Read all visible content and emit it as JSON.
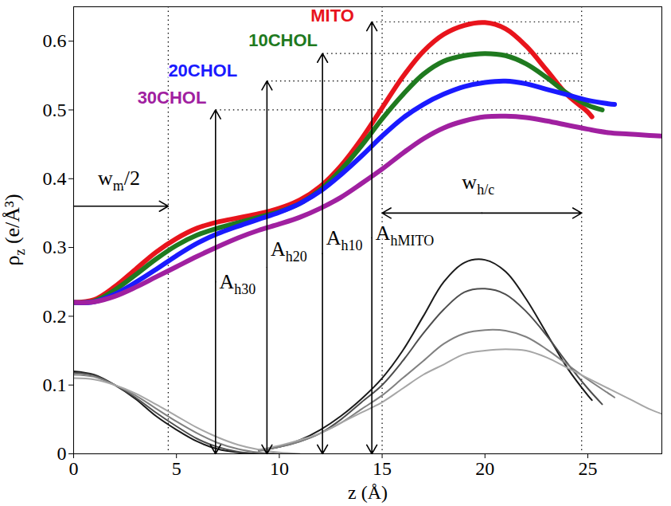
{
  "chart_data": {
    "type": "line",
    "xlabel": "z (Å)",
    "ylabel": {
      "text": "ρ",
      "sub": "z",
      "suffix": " (e/Å³)"
    },
    "xlim": [
      0,
      28.6
    ],
    "ylim": [
      0,
      0.65
    ],
    "xticks": [
      0,
      5,
      10,
      15,
      20,
      25
    ],
    "yticks": [
      0,
      0.1,
      0.2,
      0.3,
      0.4,
      0.5,
      0.6
    ],
    "series": [
      {
        "name": "MITO",
        "color": "#e8141c",
        "label_position": {
          "x": 12.6,
          "y": 0.628
        },
        "x": [
          0,
          1,
          2,
          3,
          4,
          5,
          6,
          7,
          8,
          9,
          10,
          11,
          12,
          13,
          14,
          15,
          16,
          17,
          18,
          19,
          20,
          21,
          22,
          23,
          24,
          25,
          25.2
        ],
        "values": [
          0.22,
          0.224,
          0.243,
          0.268,
          0.293,
          0.313,
          0.328,
          0.337,
          0.343,
          0.349,
          0.357,
          0.369,
          0.389,
          0.419,
          0.458,
          0.503,
          0.548,
          0.585,
          0.61,
          0.623,
          0.627,
          0.618,
          0.593,
          0.558,
          0.522,
          0.497,
          0.49
        ]
      },
      {
        "name": "10CHOL",
        "color": "#1f7a1f",
        "label_position": {
          "x": 10.2,
          "y": 0.592
        },
        "x": [
          0,
          1,
          2,
          3,
          4,
          5,
          6,
          7,
          8,
          9,
          10,
          11,
          12,
          13,
          14,
          15,
          16,
          17,
          18,
          19,
          20,
          21,
          22,
          23,
          24,
          25,
          25.7
        ],
        "values": [
          0.22,
          0.222,
          0.238,
          0.26,
          0.283,
          0.303,
          0.318,
          0.328,
          0.336,
          0.344,
          0.352,
          0.364,
          0.384,
          0.413,
          0.448,
          0.487,
          0.522,
          0.552,
          0.571,
          0.579,
          0.582,
          0.579,
          0.567,
          0.547,
          0.524,
          0.507,
          0.5
        ]
      },
      {
        "name": "20CHOL",
        "color": "#1a1aff",
        "label_position": {
          "x": 6.3,
          "y": 0.548
        },
        "x": [
          0,
          1,
          2,
          3,
          4,
          5,
          6,
          7,
          8,
          9,
          10,
          11,
          12,
          13,
          14,
          15,
          16,
          17,
          18,
          19,
          20,
          21,
          22,
          23,
          24,
          25,
          26,
          26.3
        ],
        "values": [
          0.22,
          0.221,
          0.232,
          0.249,
          0.268,
          0.288,
          0.306,
          0.32,
          0.331,
          0.341,
          0.351,
          0.364,
          0.382,
          0.406,
          0.433,
          0.462,
          0.488,
          0.508,
          0.523,
          0.534,
          0.54,
          0.542,
          0.538,
          0.53,
          0.522,
          0.514,
          0.509,
          0.508
        ]
      },
      {
        "name": "30CHOL",
        "color": "#a020a0",
        "label_position": {
          "x": 4.8,
          "y": 0.509
        },
        "x": [
          0,
          1,
          2,
          3,
          4,
          5,
          6,
          7,
          8,
          9,
          10,
          11,
          12,
          13,
          14,
          15,
          16,
          17,
          18,
          19,
          20,
          21,
          22,
          23,
          24,
          25,
          26,
          27,
          28,
          28.6
        ],
        "values": [
          0.22,
          0.221,
          0.229,
          0.242,
          0.257,
          0.272,
          0.287,
          0.301,
          0.314,
          0.325,
          0.334,
          0.344,
          0.357,
          0.373,
          0.393,
          0.414,
          0.437,
          0.458,
          0.474,
          0.484,
          0.49,
          0.491,
          0.489,
          0.484,
          0.478,
          0.472,
          0.467,
          0.465,
          0.463,
          0.462
        ]
      },
      {
        "color": "#1a1a1a",
        "x": [
          0,
          1,
          2,
          3,
          4,
          5,
          6,
          7,
          8,
          9
        ],
        "values": [
          0.12,
          0.115,
          0.1,
          0.08,
          0.055,
          0.035,
          0.018,
          0.007,
          0.002,
          0
        ]
      },
      {
        "color": "#4d4d4d",
        "x": [
          0,
          1,
          2,
          3,
          4,
          5,
          6,
          7,
          8,
          9
        ],
        "values": [
          0.118,
          0.114,
          0.1,
          0.082,
          0.06,
          0.04,
          0.022,
          0.01,
          0.003,
          0
        ]
      },
      {
        "color": "#808080",
        "x": [
          0,
          1,
          2,
          3,
          4,
          5,
          6,
          7,
          8,
          9,
          10
        ],
        "values": [
          0.115,
          0.112,
          0.1,
          0.085,
          0.066,
          0.047,
          0.03,
          0.016,
          0.007,
          0.002,
          0
        ]
      },
      {
        "color": "#a6a6a6",
        "x": [
          0,
          1,
          2,
          3,
          4,
          5,
          6,
          7,
          8,
          9,
          10,
          11
        ],
        "values": [
          0.11,
          0.108,
          0.1,
          0.088,
          0.072,
          0.055,
          0.038,
          0.024,
          0.013,
          0.006,
          0.002,
          0
        ]
      },
      {
        "color": "#1a1a1a",
        "x": [
          9,
          10,
          11,
          12,
          13,
          14,
          15,
          16,
          17,
          18,
          19,
          20,
          21,
          22,
          23,
          24,
          25,
          25.2
        ],
        "values": [
          0.005,
          0.01,
          0.02,
          0.035,
          0.055,
          0.08,
          0.11,
          0.15,
          0.2,
          0.25,
          0.278,
          0.282,
          0.265,
          0.225,
          0.175,
          0.125,
          0.085,
          0.078
        ]
      },
      {
        "color": "#4d4d4d",
        "x": [
          9,
          10,
          11,
          12,
          13,
          14,
          15,
          16,
          17,
          18,
          19,
          20,
          21,
          22,
          23,
          24,
          25,
          25.7
        ],
        "values": [
          0.005,
          0.01,
          0.018,
          0.03,
          0.05,
          0.075,
          0.1,
          0.135,
          0.175,
          0.21,
          0.235,
          0.24,
          0.232,
          0.207,
          0.172,
          0.132,
          0.095,
          0.072
        ]
      },
      {
        "color": "#808080",
        "x": [
          9,
          10,
          11,
          12,
          13,
          14,
          15,
          16,
          17,
          18,
          19,
          20,
          21,
          22,
          23,
          24,
          25,
          26,
          26.3
        ],
        "values": [
          0.004,
          0.01,
          0.018,
          0.03,
          0.045,
          0.065,
          0.085,
          0.11,
          0.135,
          0.16,
          0.175,
          0.18,
          0.179,
          0.17,
          0.152,
          0.13,
          0.108,
          0.088,
          0.082
        ]
      },
      {
        "color": "#a6a6a6",
        "x": [
          9,
          10,
          11,
          12,
          13,
          14,
          15,
          16,
          17,
          18,
          19,
          20,
          21,
          22,
          23,
          24,
          25,
          26,
          27,
          28,
          28.6
        ],
        "values": [
          0.006,
          0.012,
          0.02,
          0.03,
          0.045,
          0.06,
          0.075,
          0.095,
          0.115,
          0.13,
          0.145,
          0.15,
          0.152,
          0.15,
          0.14,
          0.125,
          0.11,
          0.095,
          0.08,
          0.065,
          0.058
        ]
      }
    ],
    "reference_lines": {
      "x": [
        4.6,
        15,
        24.7
      ],
      "y": [
        {
          "y": 0.628,
          "x1": 14.5,
          "x2": 24.7
        },
        {
          "y": 0.582,
          "x1": 12.1,
          "x2": 24.7
        },
        {
          "y": 0.542,
          "x1": 9.4,
          "x2": 24.7
        },
        {
          "y": 0.5,
          "x1": 6.9,
          "x2": 24.7
        }
      ]
    },
    "arrows": [
      {
        "x1": 6.9,
        "y1": 0,
        "x2": 6.9,
        "y2": 0.5,
        "double": true
      },
      {
        "x1": 9.4,
        "y1": 0,
        "x2": 9.4,
        "y2": 0.542,
        "double": true
      },
      {
        "x1": 12.1,
        "y1": 0,
        "x2": 12.1,
        "y2": 0.582,
        "double": true
      },
      {
        "x1": 14.5,
        "y1": 0,
        "x2": 14.5,
        "y2": 0.628,
        "double": true
      },
      {
        "x1": 0,
        "y1": 0.36,
        "x2": 4.6,
        "y2": 0.36,
        "double": false
      },
      {
        "x1": 15,
        "y1": 0.35,
        "x2": 24.7,
        "y2": 0.35,
        "double": true
      }
    ],
    "annotations": [
      {
        "text": "A",
        "sub": "h30",
        "x": 7.1,
        "y": 0.24
      },
      {
        "text": "A",
        "sub": "h20",
        "x": 9.6,
        "y": 0.287
      },
      {
        "text": "A",
        "sub": "h10",
        "x": 12.3,
        "y": 0.303
      },
      {
        "text": "A",
        "sub": "hMITO",
        "x": 14.7,
        "y": 0.31
      },
      {
        "text": "w",
        "sub": "m",
        "suffix": "/2",
        "x": 1.2,
        "y": 0.39
      },
      {
        "text": "w",
        "sub": "h/c",
        "x": 18.9,
        "y": 0.385
      }
    ]
  }
}
